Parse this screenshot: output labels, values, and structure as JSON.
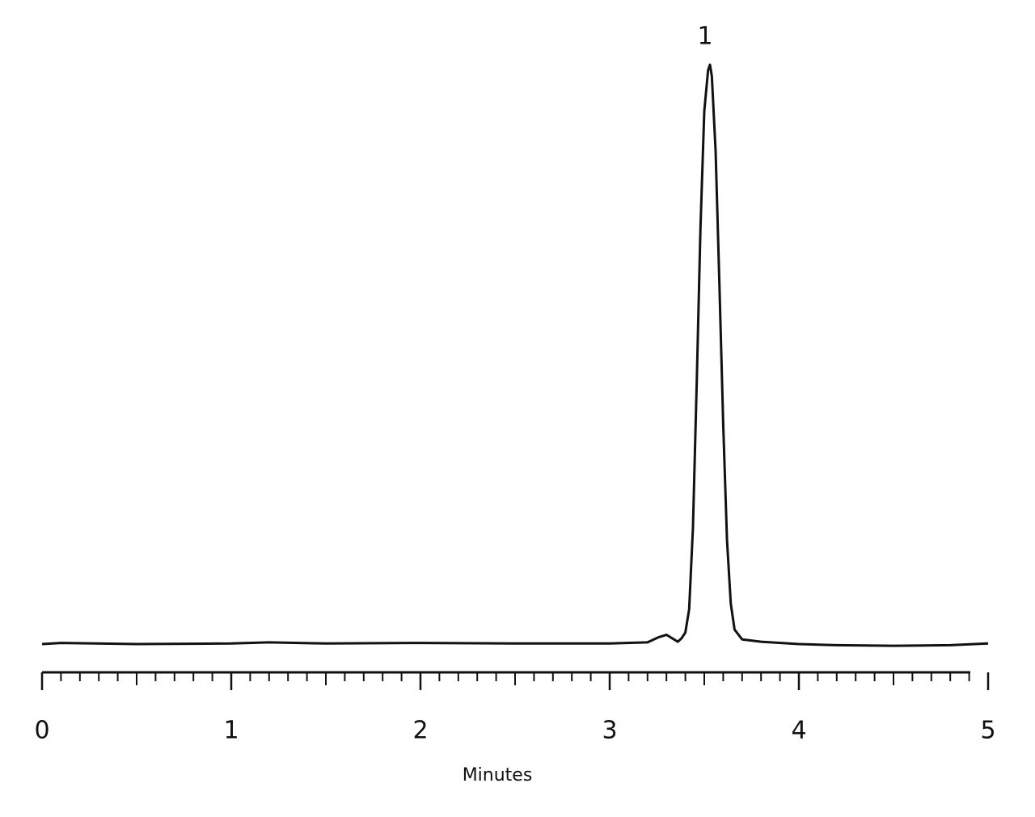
{
  "chart_data": {
    "type": "line",
    "x_label": "Minutes",
    "xlim": [
      0,
      5
    ],
    "xticks": [
      0,
      1,
      2,
      3,
      4,
      5
    ],
    "ylim": [
      0,
      100
    ],
    "series": [
      {
        "color": "#111111",
        "x": [
          0,
          0.1,
          0.5,
          1,
          1.2,
          1.5,
          2,
          2.5,
          3,
          3.2,
          3.26,
          3.3,
          3.33,
          3.36,
          3.38,
          3.4,
          3.42,
          3.44,
          3.46,
          3.48,
          3.5,
          3.52,
          3.53,
          3.54,
          3.56,
          3.58,
          3.6,
          3.62,
          3.64,
          3.66,
          3.7,
          3.8,
          4,
          4.2,
          4.5,
          4.8,
          5
        ],
        "values": [
          0,
          0.2,
          0,
          0.1,
          0.3,
          0.1,
          0.2,
          0.1,
          0.1,
          0.3,
          1.2,
          1.6,
          1,
          0.4,
          1,
          2,
          6,
          20,
          45,
          72,
          92,
          99,
          100,
          98,
          85,
          62,
          38,
          18,
          7,
          2.5,
          0.8,
          0.4,
          0,
          -0.2,
          -0.3,
          -0.2,
          0.1
        ]
      }
    ],
    "annotations": [
      {
        "text": "1",
        "x": 3.53,
        "y": 100
      }
    ]
  }
}
